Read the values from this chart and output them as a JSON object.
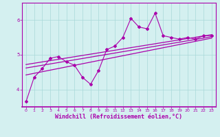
{
  "title": "",
  "xlabel": "Windchill (Refroidissement éolien,°C)",
  "ylabel": "",
  "bg_color": "#d4f0f0",
  "line_color": "#aa00aa",
  "x_data": [
    0,
    1,
    2,
    3,
    4,
    5,
    6,
    7,
    8,
    9,
    10,
    11,
    12,
    13,
    14,
    15,
    16,
    17,
    18,
    19,
    20,
    21,
    22,
    23
  ],
  "y_data": [
    3.65,
    4.35,
    4.6,
    4.9,
    4.95,
    4.8,
    4.7,
    4.35,
    4.15,
    4.55,
    5.15,
    5.25,
    5.5,
    6.05,
    5.8,
    5.75,
    6.2,
    5.55,
    5.5,
    5.45,
    5.5,
    5.45,
    5.55,
    5.55
  ],
  "trend1_x": [
    0,
    23
  ],
  "trend1_y": [
    4.62,
    5.52
  ],
  "trend2_x": [
    0,
    23
  ],
  "trend2_y": [
    4.72,
    5.58
  ],
  "trend3_x": [
    0,
    23
  ],
  "trend3_y": [
    4.42,
    5.48
  ],
  "ylim": [
    3.5,
    6.5
  ],
  "xlim": [
    -0.5,
    23.5
  ],
  "yticks": [
    4,
    5,
    6
  ],
  "xticks": [
    0,
    1,
    2,
    3,
    4,
    5,
    6,
    7,
    8,
    9,
    10,
    11,
    12,
    13,
    14,
    15,
    16,
    17,
    18,
    19,
    20,
    21,
    22,
    23
  ],
  "tick_fontsize": 4.5,
  "xlabel_fontsize": 6.0,
  "grid_color": "#a8d8d8",
  "marker": "D",
  "markersize": 2.0,
  "linewidth": 0.8,
  "trend_linewidth": 0.9,
  "spine_color": "#aa00aa",
  "tick_color": "#aa00aa",
  "label_color": "#aa00aa"
}
